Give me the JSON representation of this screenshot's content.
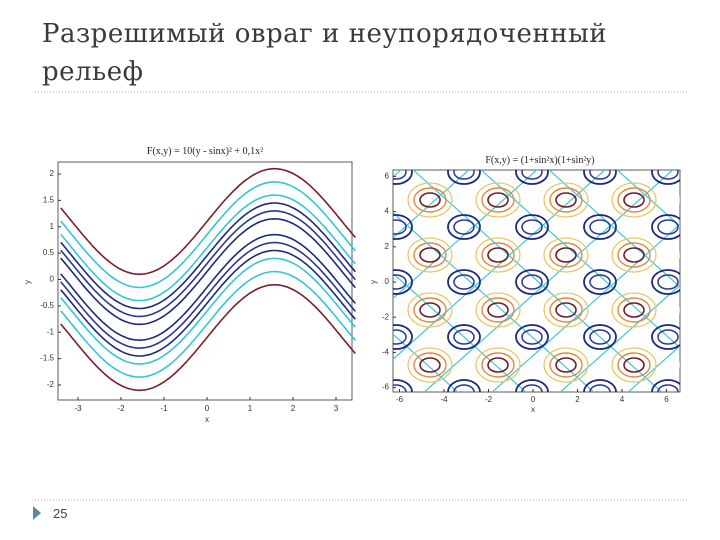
{
  "slide": {
    "title_line1": "Разрешимый овраг и неупорядоченный",
    "title_line2": "рельеф",
    "page_number": "25"
  },
  "figures": [
    {
      "title": "F(x,y) = 10(y - sinx)² + 0,1x²",
      "xlabel": "x",
      "ylabel": "y",
      "xticks": [
        "-3",
        "-2",
        "-1",
        "0",
        "1",
        "2",
        "3"
      ],
      "yticks": [
        "2",
        "1.5",
        "1",
        "0.5",
        "0",
        "-0.5",
        "-1",
        "-1.5",
        "-2"
      ]
    },
    {
      "title": "F(x,y) = (1+sin²x)(1+sin²y)",
      "xlabel": "x",
      "ylabel": "y",
      "xticks": [
        "-6",
        "-4",
        "-2",
        "0",
        "2",
        "4",
        "6"
      ],
      "yticks": [
        "6",
        "4",
        "2",
        "0",
        "-2",
        "-4",
        "-6"
      ]
    }
  ]
}
